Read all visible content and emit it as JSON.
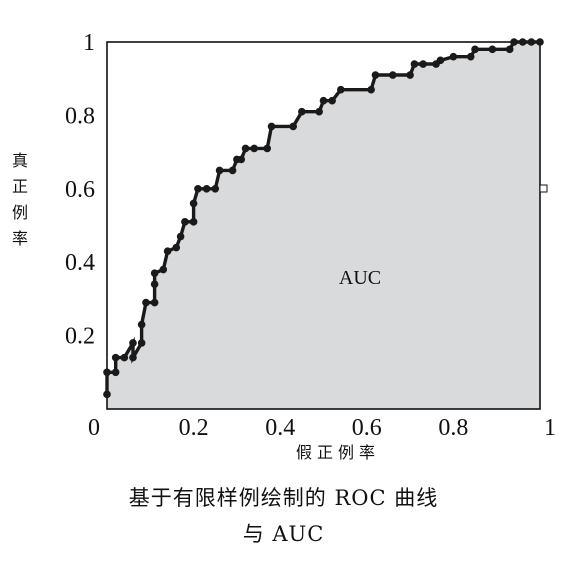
{
  "chart_data": {
    "type": "line",
    "title": "",
    "xlabel": "假正例率",
    "ylabel": "真正例率",
    "xlim": [
      0,
      1
    ],
    "ylim": [
      0,
      1
    ],
    "x_ticks": [
      0,
      0.2,
      0.4,
      0.6,
      0.8,
      1
    ],
    "x_tick_labels": [
      "0",
      "0.2",
      "0.4",
      "0.6",
      "0.8",
      "1"
    ],
    "y_ticks": [
      0,
      0.2,
      0.4,
      0.6,
      0.8,
      1
    ],
    "y_tick_labels": [
      "0",
      "0.2",
      "0.4",
      "0.6",
      "0.8",
      "1"
    ],
    "area_label": "AUC",
    "area_fill": "#d9dadb",
    "line_color": "#1a1a1a",
    "grid": false,
    "series": [
      {
        "values": [
          [
            0,
            0.04
          ],
          [
            0,
            0.1
          ],
          [
            0.02,
            0.1
          ],
          [
            0.02,
            0.14
          ],
          [
            0.04,
            0.14
          ],
          [
            0.06,
            0.18
          ],
          [
            0.06,
            0.14
          ],
          [
            0.08,
            0.18
          ],
          [
            0.08,
            0.23
          ],
          [
            0.09,
            0.29
          ],
          [
            0.11,
            0.29
          ],
          [
            0.11,
            0.34
          ],
          [
            0.11,
            0.37
          ],
          [
            0.13,
            0.38
          ],
          [
            0.14,
            0.43
          ],
          [
            0.16,
            0.44
          ],
          [
            0.17,
            0.47
          ],
          [
            0.18,
            0.51
          ],
          [
            0.2,
            0.51
          ],
          [
            0.2,
            0.56
          ],
          [
            0.21,
            0.6
          ],
          [
            0.23,
            0.6
          ],
          [
            0.25,
            0.6
          ],
          [
            0.26,
            0.65
          ],
          [
            0.29,
            0.65
          ],
          [
            0.3,
            0.68
          ],
          [
            0.31,
            0.68
          ],
          [
            0.32,
            0.71
          ],
          [
            0.34,
            0.71
          ],
          [
            0.37,
            0.71
          ],
          [
            0.38,
            0.77
          ],
          [
            0.43,
            0.77
          ],
          [
            0.45,
            0.81
          ],
          [
            0.49,
            0.81
          ],
          [
            0.5,
            0.84
          ],
          [
            0.52,
            0.84
          ],
          [
            0.54,
            0.87
          ],
          [
            0.61,
            0.87
          ],
          [
            0.62,
            0.91
          ],
          [
            0.66,
            0.91
          ],
          [
            0.7,
            0.91
          ],
          [
            0.71,
            0.94
          ],
          [
            0.73,
            0.94
          ],
          [
            0.76,
            0.94
          ],
          [
            0.77,
            0.95
          ],
          [
            0.8,
            0.96
          ],
          [
            0.84,
            0.96
          ],
          [
            0.85,
            0.98
          ],
          [
            0.89,
            0.98
          ],
          [
            0.93,
            0.98
          ],
          [
            0.94,
            1.0
          ],
          [
            0.96,
            1.0
          ],
          [
            0.98,
            1.0
          ],
          [
            1.0,
            1.0
          ]
        ]
      }
    ]
  },
  "caption": {
    "line1": "基于有限样例绘制的 ROC 曲线",
    "line2": "与 AUC"
  }
}
